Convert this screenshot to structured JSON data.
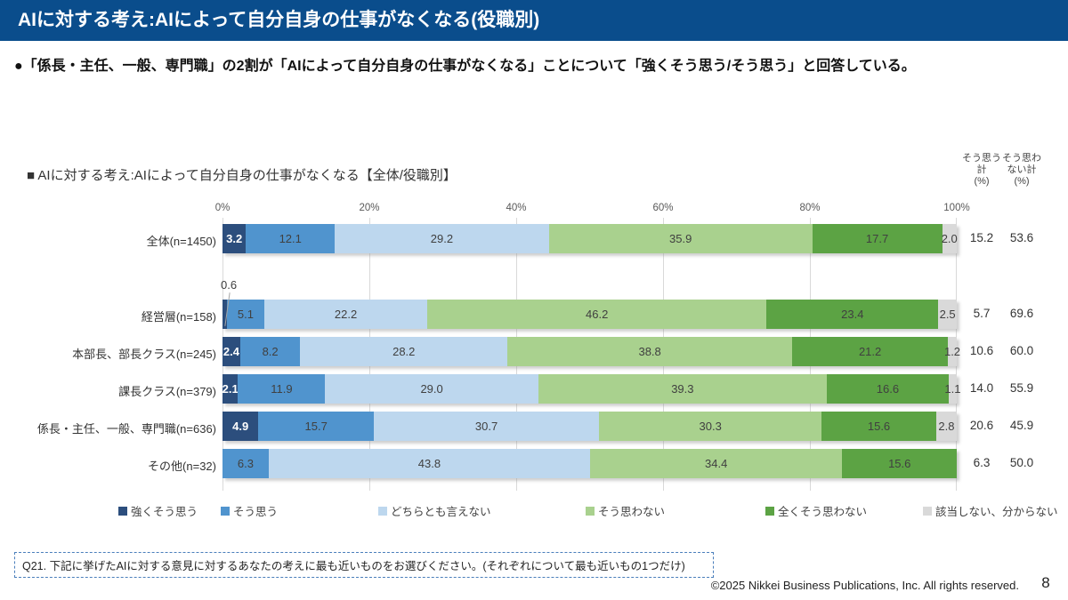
{
  "slide": {
    "header_title": "AIに対する考え:AIによって自分自身の仕事がなくなる(役職別)",
    "summary_bullet": "●「係長・主任、一般、専門職」の2割が「AIによって自分自身の仕事がなくなる」ことについて「強くそう思う/そう思う」と回答している。",
    "question_note": "Q21. 下記に挙げたAIに対する意見に対するあなたの考えに最も近いものをお選びください。(それぞれについて最も近いもの1つだけ)",
    "copyright": "©2025 Nikkei Business Publications, Inc. All rights reserved.",
    "page_number": "8"
  },
  "chart_data": {
    "type": "bar",
    "variant": "horizontal-stacked",
    "title": "■ AIに対する考え:AIによって自分自身の仕事がなくなる【全体/役職別】",
    "axis_ticks": [
      "0%",
      "20%",
      "40%",
      "60%",
      "80%",
      "100%"
    ],
    "x_range": [
      0,
      100
    ],
    "grid": true,
    "legend_position": "bottom",
    "series_names": [
      "強くそう思う",
      "そう思う",
      "どちらとも言えない",
      "そう思わない",
      "全くそう思わない",
      "該当しない、分からない"
    ],
    "series_colors": [
      "#2C4E7D",
      "#5094CE",
      "#BDD7EE",
      "#A9D18E",
      "#5CA344",
      "#D9D9D9"
    ],
    "totals_headers": [
      [
        "そう思う",
        "計",
        "(%)"
      ],
      [
        "そう思わ",
        "ない計",
        "(%)"
      ]
    ],
    "rows": [
      {
        "label": "全体(n=1450)",
        "values": [
          3.2,
          12.1,
          29.2,
          35.9,
          17.7,
          2.0
        ],
        "value_labels": [
          "3.2",
          "12.1",
          "29.2",
          "35.9",
          "17.7",
          "2.0"
        ],
        "agree_total": "15.2",
        "disagree_total": "53.6"
      },
      {
        "label": "経営層(n=158)",
        "values": [
          0.6,
          5.1,
          22.2,
          46.2,
          23.4,
          2.5
        ],
        "value_labels": [
          "",
          "5.1",
          "22.2",
          "46.2",
          "23.4",
          "2.5"
        ],
        "callout_value": "0.6",
        "agree_total": "5.7",
        "disagree_total": "69.6"
      },
      {
        "label": "本部長、部長クラス(n=245)",
        "values": [
          2.4,
          8.2,
          28.2,
          38.8,
          21.2,
          1.2
        ],
        "value_labels": [
          "2.4",
          "8.2",
          "28.2",
          "38.8",
          "21.2",
          "1.2"
        ],
        "agree_total": "10.6",
        "disagree_total": "60.0"
      },
      {
        "label": "課長クラス(n=379)",
        "values": [
          2.1,
          11.9,
          29.0,
          39.3,
          16.6,
          1.1
        ],
        "value_labels": [
          "2.1",
          "11.9",
          "29.0",
          "39.3",
          "16.6",
          "1.1"
        ],
        "agree_total": "14.0",
        "disagree_total": "55.9"
      },
      {
        "label": "係長・主任、一般、専門職(n=636)",
        "values": [
          4.9,
          15.7,
          30.7,
          30.3,
          15.6,
          2.8
        ],
        "value_labels": [
          "4.9",
          "15.7",
          "30.7",
          "30.3",
          "15.6",
          "2.8"
        ],
        "agree_total": "20.6",
        "disagree_total": "45.9"
      },
      {
        "label": "その他(n=32)",
        "values": [
          0,
          6.3,
          43.8,
          34.4,
          15.6,
          0
        ],
        "value_labels": [
          "",
          "6.3",
          "43.8",
          "34.4",
          "15.6",
          ""
        ],
        "agree_total": "6.3",
        "disagree_total": "50.0"
      }
    ]
  }
}
